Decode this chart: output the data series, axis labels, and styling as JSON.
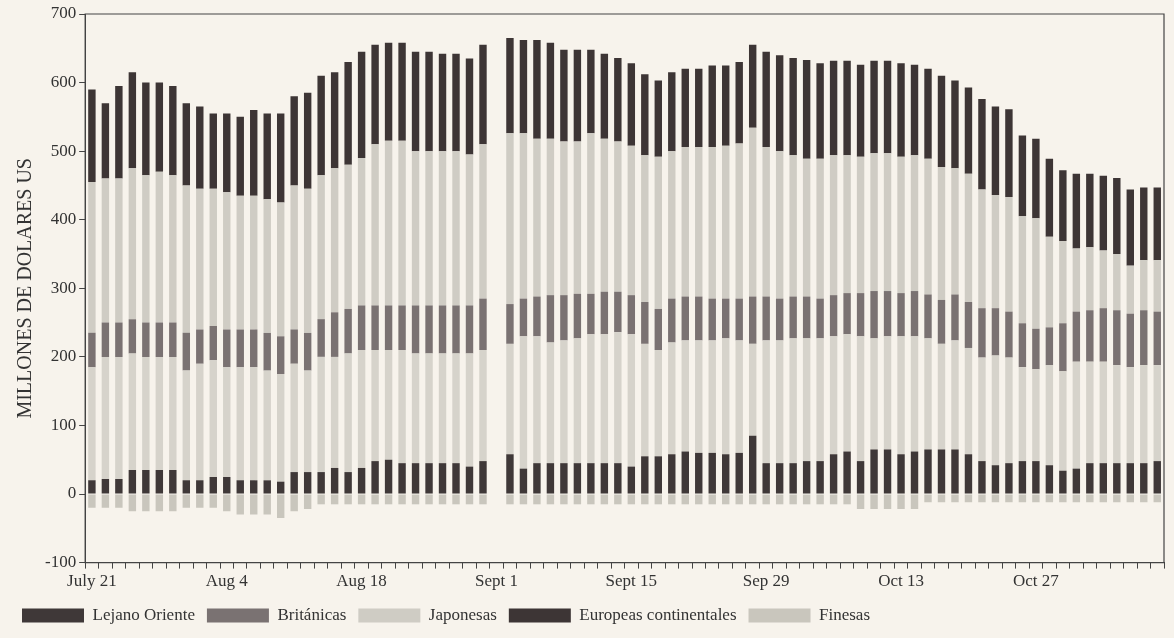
{
  "chart_data": {
    "type": "bar",
    "ylabel": "MILLONES DE DOLARES US",
    "stacked": true,
    "legend": "bottom",
    "ylim": [
      -100,
      700
    ],
    "yticks": [
      -100,
      0,
      100,
      200,
      300,
      400,
      500,
      600,
      700
    ],
    "categories": [
      "July 21",
      null,
      null,
      null,
      null,
      null,
      null,
      null,
      null,
      null,
      "Aug 4",
      null,
      null,
      null,
      null,
      null,
      null,
      null,
      null,
      null,
      "Aug 18",
      null,
      null,
      null,
      null,
      null,
      null,
      null,
      null,
      null,
      "Sept 1",
      null,
      null,
      null,
      null,
      null,
      null,
      null,
      null,
      null,
      "Sept 15",
      null,
      null,
      null,
      null,
      null,
      null,
      null,
      null,
      null,
      "Sep 29",
      null,
      null,
      null,
      null,
      null,
      null,
      null,
      null,
      null,
      "Oct 13",
      null,
      null,
      null,
      null,
      null,
      null,
      null,
      null,
      null,
      "Oct 27",
      null,
      null,
      null,
      null,
      null,
      null,
      null,
      null,
      null
    ],
    "series": [
      {
        "name": "Lejano Oriente",
        "color": "#3f3838",
        "values": [
          20,
          22,
          22,
          35,
          35,
          35,
          35,
          20,
          20,
          25,
          25,
          20,
          20,
          20,
          18,
          32,
          32,
          32,
          38,
          32,
          38,
          48,
          50,
          45,
          45,
          45,
          45,
          45,
          40,
          48,
          null,
          58,
          37,
          45,
          45,
          45,
          45,
          45,
          45,
          45,
          40,
          55,
          55,
          58,
          62,
          60,
          60,
          58,
          60,
          85,
          45,
          45,
          45,
          48,
          48,
          58,
          62,
          48,
          65,
          65,
          58,
          62,
          65,
          65,
          65,
          58,
          48,
          42,
          45,
          48,
          48,
          42,
          34,
          37,
          45,
          45,
          45,
          45,
          45,
          48
        ]
      },
      {
        "color": "#d6d3cb",
        "values": [
          165,
          178,
          178,
          170,
          165,
          165,
          165,
          160,
          170,
          170,
          160,
          165,
          165,
          160,
          157,
          158,
          148,
          168,
          162,
          173,
          172,
          162,
          160,
          165,
          160,
          160,
          160,
          160,
          165,
          162,
          null,
          161,
          193,
          185,
          176,
          179,
          182,
          188,
          188,
          191,
          193,
          164,
          155,
          163,
          162,
          164,
          164,
          169,
          164,
          134,
          179,
          179,
          182,
          179,
          179,
          172,
          171,
          182,
          162,
          165,
          172,
          168,
          162,
          154,
          159,
          155,
          151,
          160,
          154,
          137,
          134,
          146,
          145,
          156,
          148,
          148,
          143,
          140,
          143,
          140
        ]
      },
      {
        "name": "Británicas",
        "color": "#7a7272",
        "values": [
          50,
          50,
          50,
          50,
          50,
          50,
          50,
          55,
          50,
          50,
          55,
          55,
          55,
          55,
          55,
          50,
          55,
          55,
          65,
          65,
          65,
          65,
          65,
          65,
          70,
          70,
          70,
          70,
          70,
          75,
          null,
          58,
          55,
          58,
          69,
          66,
          65,
          59,
          62,
          59,
          57,
          61,
          60,
          64,
          64,
          64,
          61,
          58,
          61,
          69,
          64,
          61,
          61,
          61,
          58,
          60,
          60,
          63,
          69,
          66,
          63,
          66,
          64,
          64,
          67,
          67,
          72,
          69,
          67,
          64,
          59,
          55,
          70,
          73,
          75,
          78,
          80,
          78,
          80,
          78
        ]
      },
      {
        "name": "Japonesas",
        "color": "#cfccc4",
        "values": [
          220,
          210,
          210,
          220,
          215,
          220,
          215,
          215,
          205,
          200,
          200,
          195,
          195,
          195,
          195,
          210,
          210,
          210,
          210,
          210,
          215,
          235,
          240,
          240,
          225,
          225,
          225,
          225,
          220,
          225,
          null,
          249,
          241,
          230,
          228,
          224,
          222,
          234,
          223,
          219,
          218,
          214,
          222,
          215,
          218,
          218,
          221,
          223,
          226,
          246,
          218,
          215,
          206,
          201,
          204,
          204,
          201,
          199,
          201,
          201,
          199,
          198,
          198,
          194,
          184,
          187,
          173,
          165,
          167,
          156,
          161,
          132,
          120,
          92,
          92,
          84,
          82,
          70,
          73,
          75
        ]
      },
      {
        "name": "Europeas continentales",
        "color": "#3d3535",
        "values": [
          135,
          110,
          135,
          140,
          135,
          130,
          130,
          120,
          120,
          110,
          115,
          115,
          125,
          125,
          130,
          130,
          140,
          145,
          140,
          150,
          155,
          145,
          143,
          143,
          145,
          145,
          142,
          142,
          140,
          145,
          null,
          139,
          136,
          144,
          140,
          134,
          134,
          122,
          124,
          122,
          120,
          118,
          111,
          115,
          114,
          114,
          119,
          117,
          119,
          121,
          139,
          140,
          142,
          144,
          139,
          138,
          138,
          134,
          135,
          135,
          136,
          132,
          131,
          133,
          128,
          126,
          132,
          129,
          128,
          118,
          116,
          114,
          103,
          109,
          107,
          109,
          111,
          111,
          106,
          106
        ]
      },
      {
        "name": "Finesas",
        "color": "#c9c6bd",
        "values": [
          -20,
          -20,
          -20,
          -25,
          -25,
          -25,
          -25,
          -20,
          -20,
          -20,
          -25,
          -30,
          -30,
          -30,
          -35,
          -25,
          -22,
          -15,
          -15,
          -15,
          -15,
          -15,
          -15,
          -15,
          -15,
          -15,
          -15,
          -15,
          -15,
          -15,
          null,
          -15,
          -15,
          -15,
          -15,
          -15,
          -15,
          -15,
          -15,
          -15,
          -15,
          -15,
          -15,
          -15,
          -15,
          -15,
          -15,
          -15,
          -15,
          -15,
          -15,
          -15,
          -15,
          -15,
          -15,
          -15,
          -15,
          -22,
          -22,
          -22,
          -22,
          -22,
          -12,
          -12,
          -12,
          -12,
          -12,
          -12,
          -12,
          -12,
          -12,
          -12,
          -12,
          -12,
          -12,
          -12,
          -12,
          -12,
          -12,
          -12
        ]
      }
    ]
  }
}
